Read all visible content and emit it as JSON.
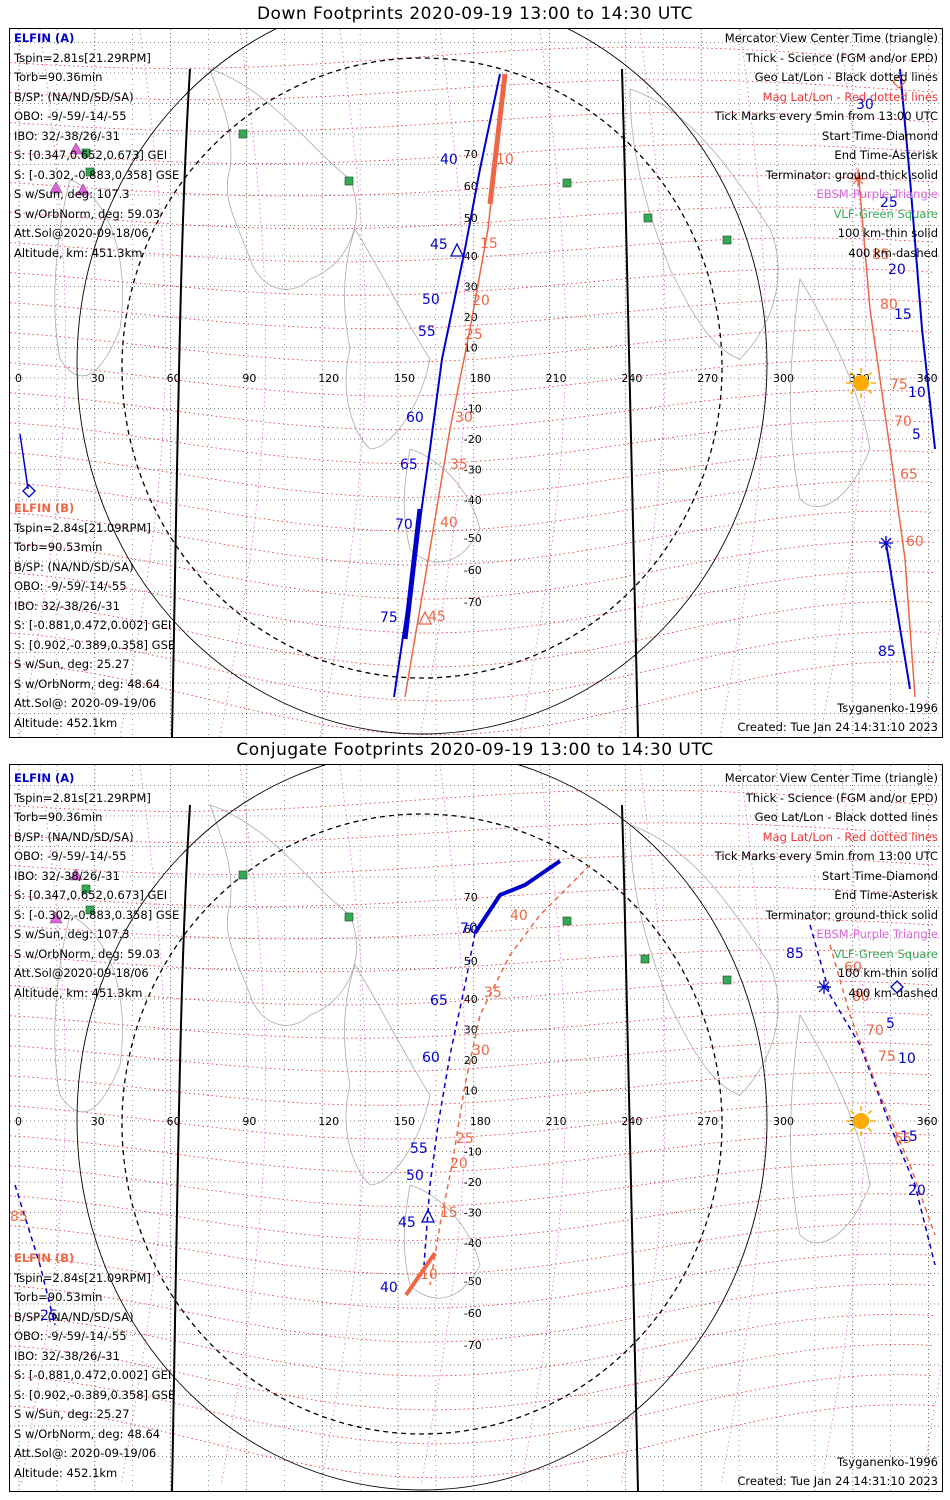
{
  "titles": {
    "down": "Down Footprints 2020-09-19 13:00 to 14:30 UTC",
    "conjugate": "Conjugate Footprints 2020-09-19 13:00 to 14:30 UTC"
  },
  "sat_a": {
    "name": "ELFIN (A)",
    "lines": [
      "Tspin=2.81s[21.29RPM]",
      "Torb=90.36min",
      "B/SP: (NA/ND/SD/SA)",
      "OBO: -9/-59/-14/-55",
      "IBO: 32/-38/26/-31",
      "S: [0.347,0.652,0.673] GEI",
      "S: [-0.302,-0.883,0.358] GSE",
      "S w/Sun, deg: 107.3",
      "S w/OrbNorm, deg: 59.03",
      "Att.Sol@2020-09-18/06",
      "Altitude, km: 451.3km"
    ]
  },
  "sat_b": {
    "name": "ELFIN (B)",
    "lines": [
      "Tspin=2.84s[21.09RPM]",
      "Torb=90.53min",
      "B/SP: (NA/ND/SD/SA)",
      "OBO: -9/-59/-14/-55",
      "IBO: 32/-38/26/-31",
      "S: [-0.881,0.472,0.002] GEI",
      "S: [0.902,-0.389,0.358] GSE",
      "S w/Sun, deg: 25.27",
      "S w/OrbNorm, deg: 48.64",
      "Att.Sol@: 2020-09-19/06",
      "Altitude: 452.1km"
    ]
  },
  "legend": {
    "mercator": "Mercator View Center Time (triangle)",
    "thick": "Thick - Science (FGM and/or EPD)",
    "geo": "Geo Lat/Lon - Black dotted lines",
    "mag": "Mag Lat/Lon - Red dotted lines",
    "ticks": "Tick Marks every 5min from 13:00 UTC",
    "start": "Start Time-Diamond",
    "end": "End Time-Asterisk",
    "terminator": "Terminator: ground-thick solid",
    "ebsm": "EBSM-Purple Triangle",
    "vlf": "VLF-Green Square",
    "km100": "100 km-thin solid",
    "km400": "400 km-dashed"
  },
  "footer": {
    "model": "Tsyganenko-1996",
    "created": "Created: Tue Jan 24 14:31:10 2023"
  },
  "axes": {
    "lon_labels": [
      "0",
      "30",
      "60",
      "90",
      "120",
      "150",
      "180",
      "210",
      "240",
      "270",
      "300",
      "330",
      "360"
    ],
    "lat_labels": [
      "70",
      "60",
      "50",
      "40",
      "30",
      "20",
      "10",
      "-10",
      "-20",
      "-30",
      "-40",
      "-50",
      "-60",
      "-70"
    ]
  },
  "down_ticks": {
    "a": [
      "40",
      "45",
      "50",
      "55",
      "60",
      "65",
      "70",
      "75",
      "5",
      "10",
      "15",
      "20",
      "25",
      "30",
      "85"
    ],
    "b": [
      "10",
      "15",
      "20",
      "25",
      "30",
      "35",
      "40",
      "45",
      "60",
      "65",
      "70",
      "75",
      "80",
      "85"
    ]
  },
  "conj_ticks": {
    "a": [
      "70",
      "65",
      "60",
      "55",
      "50",
      "45",
      "40",
      "85",
      "5",
      "10",
      "15",
      "20",
      "25"
    ],
    "b": [
      "40",
      "35",
      "30",
      "25",
      "20",
      "15",
      "10",
      "60",
      "65",
      "70",
      "75",
      "80",
      "85"
    ]
  },
  "colors": {
    "sat_a": "#0000cc",
    "sat_b": "#ee6644",
    "geo_grid": "#000000",
    "mag_grid": "#ee2222",
    "ebsm": "#dd66dd",
    "vlf": "#33aa55",
    "sun": "#ffaa00"
  }
}
